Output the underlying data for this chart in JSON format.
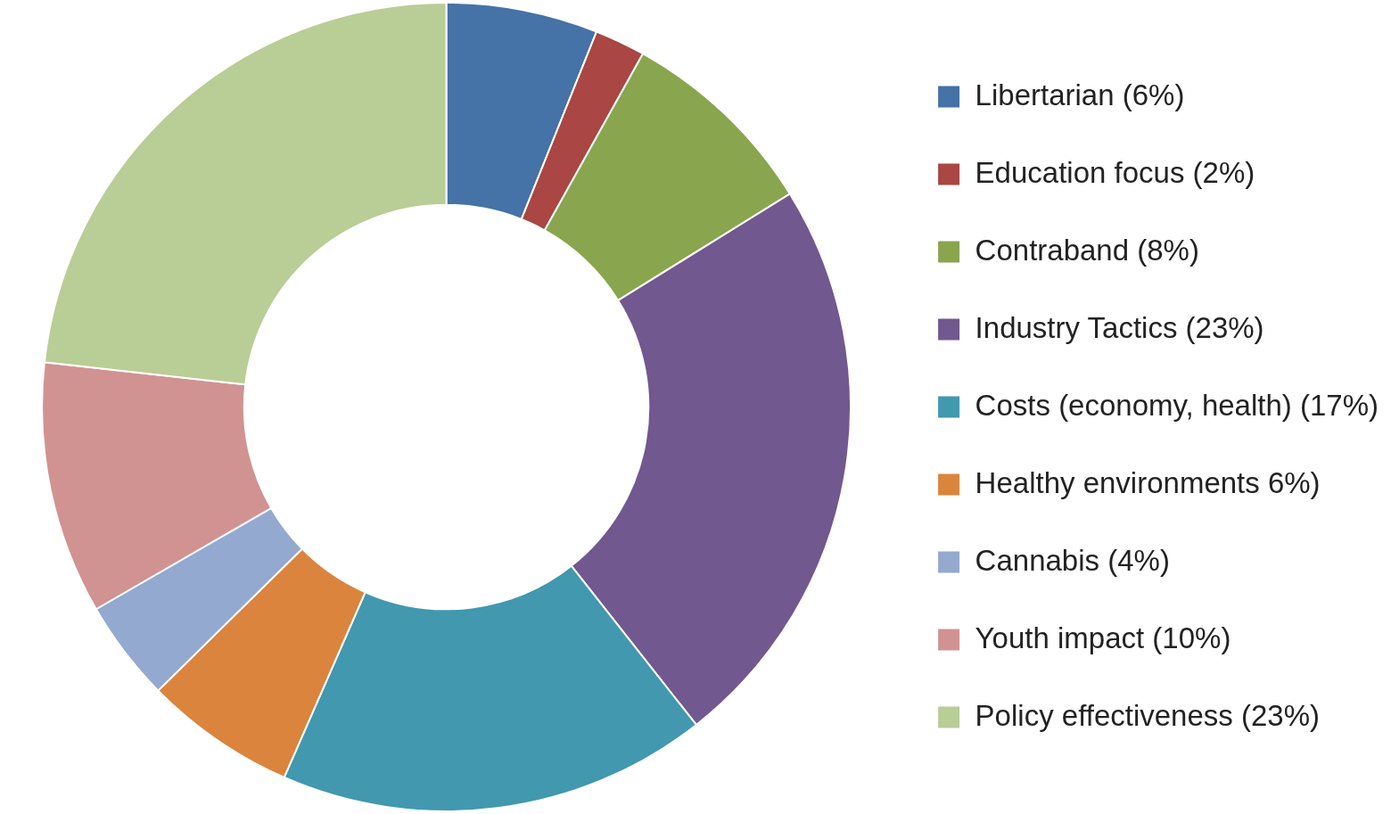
{
  "chart_data": {
    "type": "donut",
    "categories": [
      "Libertarian (6%)",
      "Education focus (2%)",
      "Contraband (8%)",
      "Industry Tactics (23%)",
      "Costs (economy, health) (17%)",
      "Healthy environments 6%)",
      "Cannabis (4%)",
      "Youth impact (10%)",
      "Policy effectiveness (23%)"
    ],
    "values": [
      6,
      2,
      8,
      23,
      17,
      6,
      4,
      10,
      23
    ],
    "colors": [
      "#4572a7",
      "#aa4643",
      "#89a54e",
      "#71588f",
      "#4198af",
      "#db843d",
      "#93a9cf",
      "#d19392",
      "#b9cd96"
    ],
    "legend": "right"
  }
}
